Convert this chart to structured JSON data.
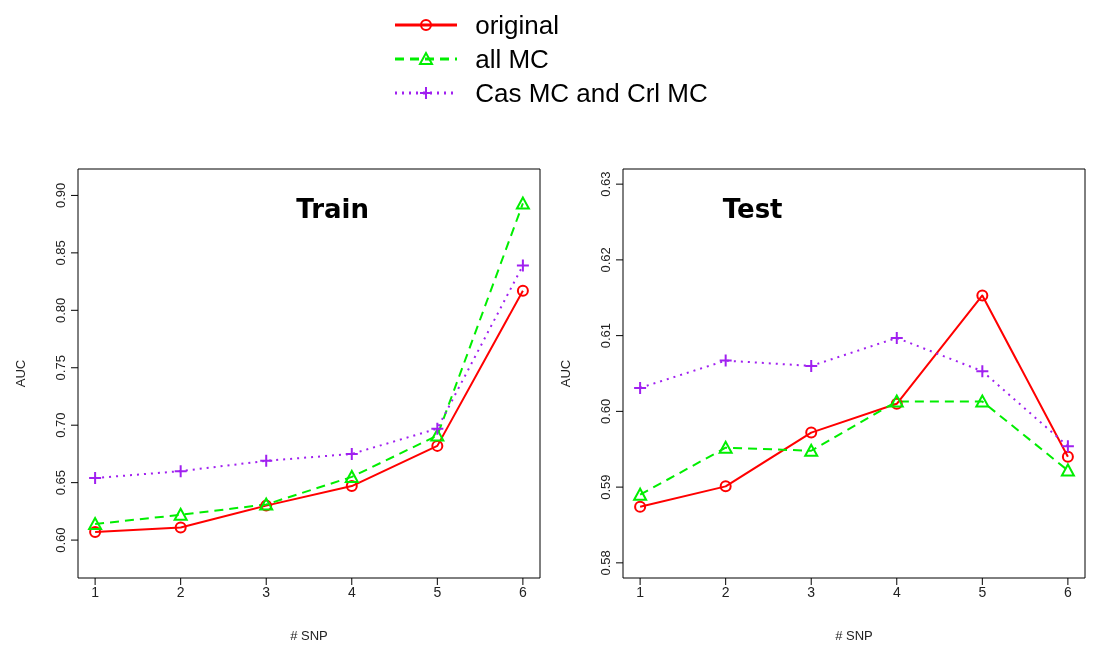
{
  "chart_data": [
    {
      "type": "line",
      "title": "Train",
      "xlabel": "# SNP",
      "ylabel": "AUC",
      "x": [
        1,
        2,
        3,
        4,
        5,
        6
      ],
      "xlim": [
        0.8,
        6.2
      ],
      "xticks": [
        1,
        2,
        3,
        4,
        5,
        6
      ],
      "ylim": [
        0.567,
        0.923
      ],
      "yticks": [
        {
          "value": 0.6,
          "label": "0.60"
        },
        {
          "value": 0.65,
          "label": "0.65"
        },
        {
          "value": 0.7,
          "label": "0.70"
        },
        {
          "value": 0.75,
          "label": "0.75"
        },
        {
          "value": 0.8,
          "label": "0.80"
        },
        {
          "value": 0.85,
          "label": "0.85"
        },
        {
          "value": 0.9,
          "label": "0.90"
        }
      ],
      "grid": false,
      "legend": "top",
      "series": [
        {
          "name": "original",
          "color": "#ff0000",
          "marker": "circle",
          "line_style": "solid",
          "values": [
            0.607,
            0.611,
            0.63,
            0.647,
            0.682,
            0.817
          ]
        },
        {
          "name": "all MC",
          "color": "#00ee00",
          "marker": "triangle",
          "line_style": "dashed",
          "values": [
            0.614,
            0.622,
            0.631,
            0.655,
            0.691,
            0.893
          ]
        },
        {
          "name": "Cas MC and Crl MC",
          "color": "#a020f0",
          "marker": "cross",
          "line_style": "dotted",
          "values": [
            0.654,
            0.66,
            0.669,
            0.675,
            0.697,
            0.839
          ]
        }
      ]
    },
    {
      "type": "line",
      "title": "Test",
      "xlabel": "# SNP",
      "ylabel": "AUC",
      "x": [
        1,
        2,
        3,
        4,
        5,
        6
      ],
      "xlim": [
        0.8,
        6.2
      ],
      "xticks": [
        1,
        2,
        3,
        4,
        5,
        6
      ],
      "ylim": [
        0.578,
        0.632
      ],
      "yticks": [
        {
          "value": 0.58,
          "label": "0.58"
        },
        {
          "value": 0.59,
          "label": "0.59"
        },
        {
          "value": 0.6,
          "label": "0.60"
        },
        {
          "value": 0.61,
          "label": "0.61"
        },
        {
          "value": 0.62,
          "label": "0.62"
        },
        {
          "value": 0.63,
          "label": "0.63"
        }
      ],
      "grid": false,
      "series": [
        {
          "color": "#ff0000",
          "marker": "circle",
          "line_style": "solid",
          "values": [
            0.5874,
            0.5901,
            0.5972,
            0.601,
            0.6153,
            0.594
          ]
        },
        {
          "color": "#00ee00",
          "marker": "triangle",
          "line_style": "dashed",
          "values": [
            0.589,
            0.5952,
            0.5948,
            0.6013,
            0.6013,
            0.5922
          ]
        },
        {
          "color": "#a020f0",
          "marker": "cross",
          "line_style": "dotted",
          "values": [
            0.6031,
            0.6067,
            0.606,
            0.6097,
            0.6053,
            0.5954
          ]
        }
      ]
    }
  ]
}
